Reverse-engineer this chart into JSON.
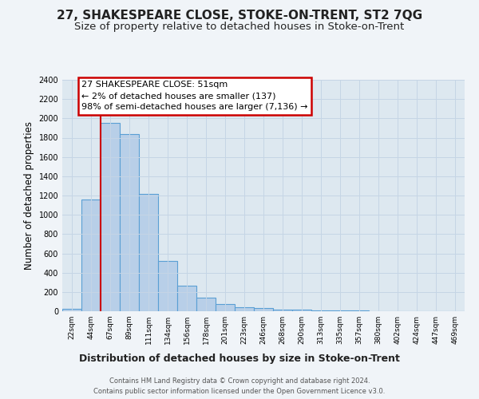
{
  "title1": "27, SHAKESPEARE CLOSE, STOKE-ON-TRENT, ST2 7QG",
  "title2": "Size of property relative to detached houses in Stoke-on-Trent",
  "xlabel": "Distribution of detached houses by size in Stoke-on-Trent",
  "ylabel": "Number of detached properties",
  "bin_labels": [
    "22sqm",
    "44sqm",
    "67sqm",
    "89sqm",
    "111sqm",
    "134sqm",
    "156sqm",
    "178sqm",
    "201sqm",
    "223sqm",
    "246sqm",
    "268sqm",
    "290sqm",
    "313sqm",
    "335sqm",
    "357sqm",
    "380sqm",
    "402sqm",
    "424sqm",
    "447sqm",
    "469sqm"
  ],
  "bar_values": [
    25,
    1160,
    1950,
    1840,
    1220,
    520,
    265,
    140,
    75,
    45,
    35,
    20,
    15,
    10,
    8,
    5,
    3,
    2,
    2,
    1,
    1
  ],
  "bar_color": "#b8cfe8",
  "bar_edge_color": "#5a9fd4",
  "bar_linewidth": 0.8,
  "vline_color": "#cc0000",
  "annotation_line1": "27 SHAKESPEARE CLOSE: 51sqm",
  "annotation_line2": "← 2% of detached houses are smaller (137)",
  "annotation_line3": "98% of semi-detached houses are larger (7,136) →",
  "annotation_box_color": "#ffffff",
  "annotation_box_edge": "#cc0000",
  "background_color": "#f0f4f8",
  "plot_bg_color": "#dde8f0",
  "grid_color": "#c5d5e5",
  "footer1": "Contains HM Land Registry data © Crown copyright and database right 2024.",
  "footer2": "Contains public sector information licensed under the Open Government Licence v3.0.",
  "ylim": [
    0,
    2400
  ],
  "yticks": [
    0,
    200,
    400,
    600,
    800,
    1000,
    1200,
    1400,
    1600,
    1800,
    2000,
    2200,
    2400
  ],
  "title1_fontsize": 11,
  "title2_fontsize": 9.5,
  "xlabel_fontsize": 9,
  "ylabel_fontsize": 8.5,
  "tick_fontsize": 7,
  "xtick_fontsize": 6.5,
  "footer_fontsize": 6,
  "annotation_fontsize": 8
}
